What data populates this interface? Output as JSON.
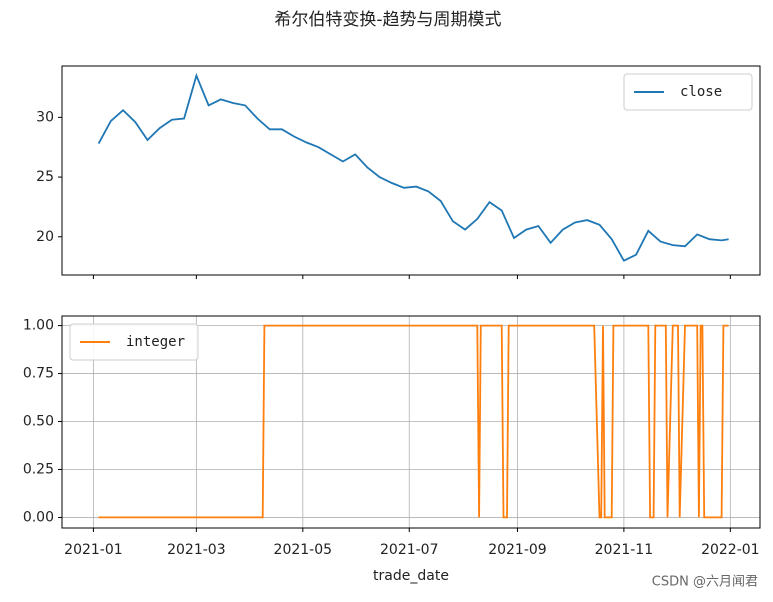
{
  "title": "希尔伯特变换-趋势与周期模式",
  "watermark": "CSDN @六月闻君",
  "chart_data": [
    {
      "type": "line",
      "legend": "upper right",
      "grid": false,
      "xlim": [
        "2020-12-14",
        "2022-01-18"
      ],
      "xticks": [
        "2021-01-01",
        "2021-03-01",
        "2021-05-01",
        "2021-07-01",
        "2021-09-01",
        "2021-11-01",
        "2022-01-01"
      ],
      "ylim": [
        16.8,
        34.3
      ],
      "yticks": [
        20,
        25,
        30
      ],
      "x": [
        "2021-01-04",
        "2021-01-11",
        "2021-01-18",
        "2021-01-25",
        "2021-02-01",
        "2021-02-08",
        "2021-02-15",
        "2021-02-22",
        "2021-03-01",
        "2021-03-08",
        "2021-03-15",
        "2021-03-22",
        "2021-03-29",
        "2021-04-05",
        "2021-04-12",
        "2021-04-19",
        "2021-04-26",
        "2021-05-03",
        "2021-05-10",
        "2021-05-17",
        "2021-05-24",
        "2021-05-31",
        "2021-06-07",
        "2021-06-14",
        "2021-06-21",
        "2021-06-28",
        "2021-07-05",
        "2021-07-12",
        "2021-07-19",
        "2021-07-26",
        "2021-08-02",
        "2021-08-09",
        "2021-08-16",
        "2021-08-23",
        "2021-08-30",
        "2021-09-06",
        "2021-09-13",
        "2021-09-20",
        "2021-09-27",
        "2021-10-04",
        "2021-10-11",
        "2021-10-18",
        "2021-10-25",
        "2021-11-01",
        "2021-11-08",
        "2021-11-15",
        "2021-11-22",
        "2021-11-29",
        "2021-12-06",
        "2021-12-13",
        "2021-12-20",
        "2021-12-27",
        "2021-12-31"
      ],
      "series": [
        {
          "name": "close",
          "color": "#1f77b4",
          "values": [
            27.8,
            29.7,
            30.6,
            29.6,
            28.1,
            29.1,
            29.8,
            29.9,
            33.5,
            31.0,
            31.5,
            31.2,
            31.0,
            29.9,
            29.0,
            29.0,
            28.4,
            27.9,
            27.5,
            26.9,
            26.3,
            26.9,
            25.8,
            25.0,
            24.5,
            24.1,
            24.2,
            23.8,
            23.0,
            21.3,
            20.6,
            21.5,
            22.9,
            22.2,
            19.9,
            20.6,
            20.9,
            19.5,
            20.6,
            21.2,
            21.4,
            21.0,
            19.8,
            18.0,
            18.5,
            20.5,
            19.6,
            19.3,
            19.2,
            20.2,
            19.8,
            19.7,
            19.8
          ]
        }
      ]
    },
    {
      "type": "line",
      "legend": "upper left",
      "grid": true,
      "xlabel": "trade_date",
      "xlim": [
        "2020-12-14",
        "2022-01-18"
      ],
      "xticks": [
        {
          "value": "2021-01-01",
          "label": "2021-01"
        },
        {
          "value": "2021-03-01",
          "label": "2021-03"
        },
        {
          "value": "2021-05-01",
          "label": "2021-05"
        },
        {
          "value": "2021-07-01",
          "label": "2021-07"
        },
        {
          "value": "2021-09-01",
          "label": "2021-09"
        },
        {
          "value": "2021-11-01",
          "label": "2021-11"
        },
        {
          "value": "2022-01-01",
          "label": "2022-01"
        }
      ],
      "ylim": [
        -0.055,
        1.05
      ],
      "yticks": [
        {
          "value": 0,
          "label": "0.00"
        },
        {
          "value": 0.25,
          "label": "0.25"
        },
        {
          "value": 0.5,
          "label": "0.50"
        },
        {
          "value": 0.75,
          "label": "0.75"
        },
        {
          "value": 1,
          "label": "1.00"
        }
      ],
      "x": [
        "2021-01-04",
        "2021-04-08",
        "2021-04-09",
        "2021-08-09",
        "2021-08-10",
        "2021-08-11",
        "2021-08-23",
        "2021-08-24",
        "2021-08-26",
        "2021-08-27",
        "2021-10-15",
        "2021-10-18",
        "2021-10-19",
        "2021-10-20",
        "2021-10-21",
        "2021-10-25",
        "2021-10-26",
        "2021-11-15",
        "2021-11-16",
        "2021-11-18",
        "2021-11-19",
        "2021-11-25",
        "2021-11-26",
        "2021-11-29",
        "2021-12-02",
        "2021-12-03",
        "2021-12-06",
        "2021-12-13",
        "2021-12-14",
        "2021-12-15",
        "2021-12-16",
        "2021-12-17",
        "2021-12-27",
        "2021-12-28",
        "2021-12-31"
      ],
      "series": [
        {
          "name": "integer",
          "color": "#ff7f0e",
          "values": [
            0,
            0,
            1,
            1,
            0,
            1,
            1,
            0,
            0,
            1,
            1,
            0,
            0,
            1,
            0,
            0,
            1,
            1,
            0,
            0,
            1,
            1,
            0,
            1,
            1,
            0,
            1,
            1,
            0,
            1,
            1,
            0,
            0,
            1,
            1
          ]
        }
      ]
    }
  ]
}
